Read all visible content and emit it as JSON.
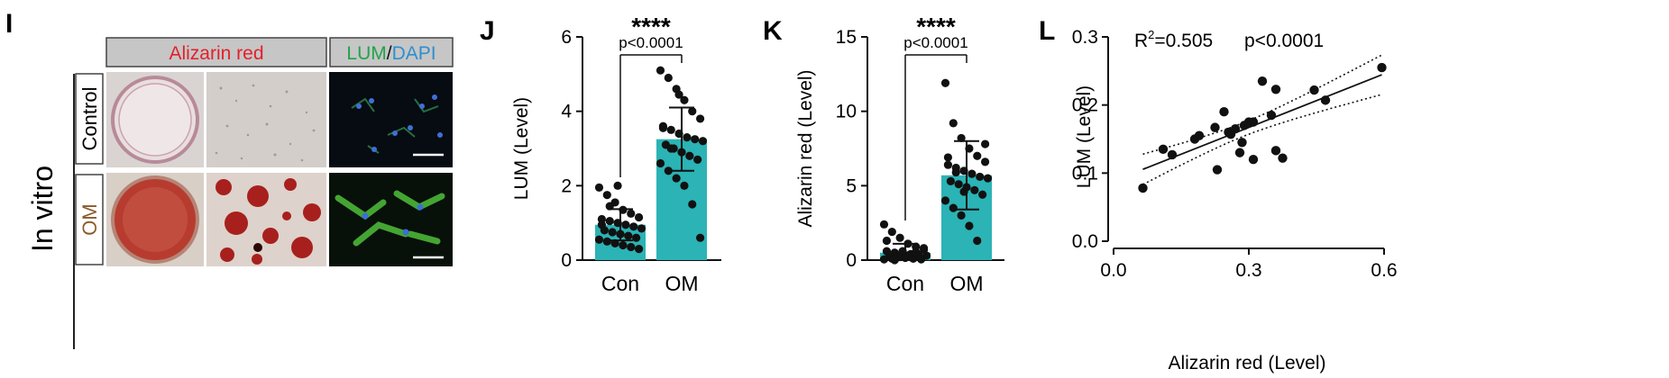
{
  "panel_I": {
    "letter": "I",
    "side_label": "In vitro",
    "header_stain": "Alizarin red",
    "header_lum": "LUM",
    "header_slash": "/",
    "header_dapi": "DAPI",
    "row1": "Control",
    "row2": "OM"
  },
  "colors": {
    "bar": "#2bb3b5",
    "red_label": "#e4202a",
    "green_label": "#21a449",
    "blue_label": "#2e8fd0",
    "om_label": "#8b5a2b",
    "header_gray": "#c6c6c6"
  },
  "chart_data": [
    {
      "panel": "J",
      "type": "bar",
      "categories": [
        "Con",
        "OM"
      ],
      "values": [
        0.95,
        3.25
      ],
      "sd": [
        0.42,
        0.85
      ],
      "ylabel": "LUM (Level)",
      "ylim": [
        0,
        6
      ],
      "yticks": [
        "0",
        "2",
        "4",
        "6"
      ],
      "significance": "****",
      "pvalue": "p<0.0001",
      "points": [
        [
          1.95,
          1.75,
          1.55,
          1.35,
          1.25,
          1.15,
          1.1,
          1.05,
          1.0,
          0.95,
          0.9,
          0.85,
          0.8,
          0.75,
          0.7,
          0.65,
          0.6,
          0.55,
          0.5,
          0.45,
          0.4,
          0.35,
          0.3,
          0.95,
          1.45,
          2.0
        ],
        [
          5.1,
          4.9,
          4.6,
          4.3,
          4.0,
          3.8,
          3.6,
          3.5,
          3.4,
          3.3,
          3.25,
          3.2,
          3.1,
          3.0,
          2.9,
          2.8,
          2.7,
          2.6,
          2.4,
          2.2,
          2.0,
          1.5,
          0.6,
          3.55,
          3.0,
          4.45
        ]
      ]
    },
    {
      "panel": "K",
      "type": "bar",
      "categories": [
        "Con",
        "OM"
      ],
      "values": [
        0.5,
        5.7
      ],
      "sd": [
        0.6,
        2.3
      ],
      "ylabel": "Alizarin red (Level)",
      "ylim": [
        0,
        15
      ],
      "yticks": [
        "0",
        "5",
        "10",
        "15"
      ],
      "significance": "****",
      "pvalue": "p<0.0001",
      "points": [
        [
          2.4,
          1.9,
          1.5,
          1.1,
          0.9,
          0.7,
          0.6,
          0.5,
          0.45,
          0.4,
          0.35,
          0.3,
          0.25,
          0.2,
          0.15,
          0.1,
          0.05,
          0.05,
          0.1,
          0.2,
          0.3,
          0.55,
          0.8,
          1.3,
          0.0,
          0.6
        ],
        [
          11.9,
          9.2,
          8.2,
          7.5,
          7.0,
          6.6,
          6.4,
          6.2,
          6.0,
          5.8,
          5.6,
          5.5,
          5.3,
          5.1,
          4.9,
          4.7,
          4.4,
          4.0,
          3.5,
          3.0,
          2.3,
          1.3,
          7.8,
          6.9,
          5.9,
          4.6
        ]
      ]
    },
    {
      "panel": "L",
      "type": "scatter",
      "xlabel": "Alizarin red (Level)",
      "ylabel": "LUM (Level)",
      "xlim": [
        0,
        0.6
      ],
      "ylim": [
        0,
        0.3
      ],
      "xticks": [
        "0.0",
        "0.3",
        "0.6"
      ],
      "yticks": [
        "0.0",
        "0.1",
        "0.2",
        "0.3"
      ],
      "r2_label": "R",
      "r2_sup": "2",
      "r2_value": "=0.505",
      "pvalue": "p<0.0001",
      "fit": {
        "slope": 0.262,
        "intercept": 0.0885
      },
      "points": [
        [
          0.065,
          0.078
        ],
        [
          0.11,
          0.135
        ],
        [
          0.13,
          0.127
        ],
        [
          0.18,
          0.15
        ],
        [
          0.19,
          0.155
        ],
        [
          0.225,
          0.167
        ],
        [
          0.23,
          0.105
        ],
        [
          0.245,
          0.19
        ],
        [
          0.255,
          0.16
        ],
        [
          0.26,
          0.157
        ],
        [
          0.27,
          0.165
        ],
        [
          0.28,
          0.13
        ],
        [
          0.285,
          0.145
        ],
        [
          0.29,
          0.17
        ],
        [
          0.3,
          0.175
        ],
        [
          0.31,
          0.175
        ],
        [
          0.31,
          0.12
        ],
        [
          0.33,
          0.235
        ],
        [
          0.35,
          0.185
        ],
        [
          0.36,
          0.223
        ],
        [
          0.36,
          0.133
        ],
        [
          0.375,
          0.122
        ],
        [
          0.445,
          0.222
        ],
        [
          0.47,
          0.207
        ],
        [
          0.595,
          0.255
        ]
      ]
    }
  ]
}
